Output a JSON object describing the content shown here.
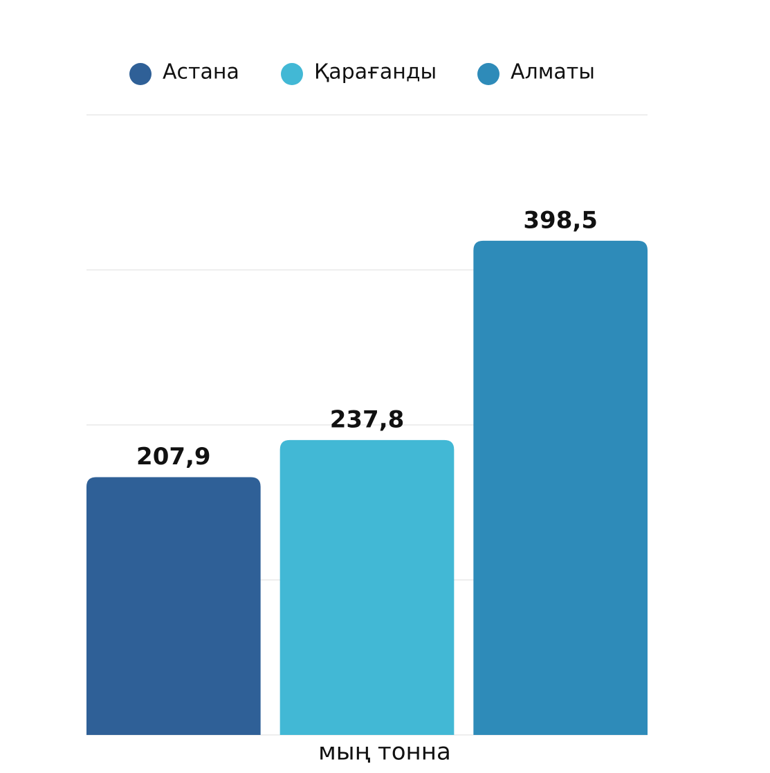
{
  "chart_data": {
    "type": "bar",
    "categories": [
      null
    ],
    "series": [
      {
        "name": "Астана",
        "color": "#2f6097",
        "values": [
          207.9
        ],
        "value_labels": [
          "207,9"
        ]
      },
      {
        "name": "Қарағанды",
        "color": "#42b8d5",
        "values": [
          237.8
        ],
        "value_labels": [
          "237,8"
        ]
      },
      {
        "name": "Алматы",
        "color": "#2e8bb9",
        "values": [
          398.5
        ],
        "value_labels": [
          "398,5"
        ]
      }
    ],
    "xlabel": "мың тонна",
    "ylim": [
      0,
      500
    ],
    "yticks": [
      0,
      125,
      250,
      375,
      500
    ],
    "grid": true
  }
}
